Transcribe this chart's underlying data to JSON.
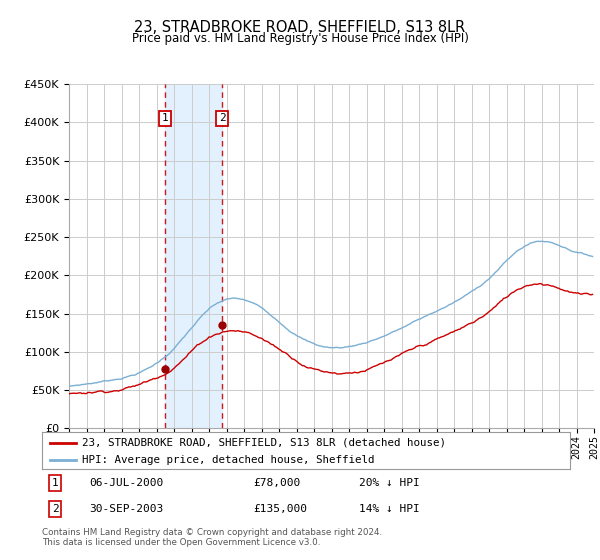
{
  "title": "23, STRADBROKE ROAD, SHEFFIELD, S13 8LR",
  "subtitle": "Price paid vs. HM Land Registry's House Price Index (HPI)",
  "legend_line1": "23, STRADBROKE ROAD, SHEFFIELD, S13 8LR (detached house)",
  "legend_line2": "HPI: Average price, detached house, Sheffield",
  "annotation1_label": "1",
  "annotation1_date": "06-JUL-2000",
  "annotation1_price": "£78,000",
  "annotation1_hpi": "20% ↓ HPI",
  "annotation2_label": "2",
  "annotation2_date": "30-SEP-2003",
  "annotation2_price": "£135,000",
  "annotation2_hpi": "14% ↓ HPI",
  "footer": "Contains HM Land Registry data © Crown copyright and database right 2024.\nThis data is licensed under the Open Government Licence v3.0.",
  "sale1_year": 2000.5,
  "sale2_year": 2003.75,
  "sale1_price": 78000,
  "sale2_price": 135000,
  "hpi_color": "#7bafd4",
  "price_color": "#cc0000",
  "grid_color": "#cccccc",
  "background_color": "#ffffff",
  "shade_color": "#ddeeff",
  "annotation_box_color": "#cc0000",
  "dot_color": "#990000",
  "ylim": [
    0,
    450000
  ],
  "xlim_start": 1995,
  "xlim_end": 2025
}
